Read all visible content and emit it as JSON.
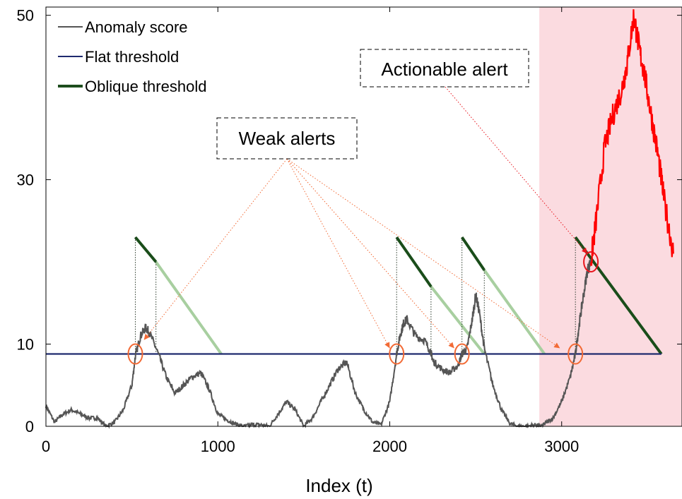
{
  "chart_data": {
    "type": "line",
    "xlabel": "Index (t)",
    "ylabel": "",
    "xlim": [
      0,
      3700
    ],
    "ylim": [
      0,
      51
    ],
    "x_ticks": [
      0,
      1000,
      2000,
      3000
    ],
    "y_ticks": [
      0,
      10,
      30,
      50
    ],
    "grid": false,
    "legend": {
      "position": "top-left",
      "entries": [
        {
          "label": "Anomaly score",
          "color": "#555555"
        },
        {
          "label": "Flat threshold",
          "color": "#1f2a6e"
        },
        {
          "label": "Oblique threshold",
          "color": "#1e4d1e"
        }
      ]
    },
    "colors": {
      "score": "#555555",
      "score_alert": "#ff0000",
      "flat": "#1f2a6e",
      "oblique_dark": "#1a4d1a",
      "oblique_light": "#a8cfa0",
      "shade": "#fbdbe0",
      "marker": "#f26a35",
      "marker_actionable": "#e8141c",
      "leader": "#f26a35"
    },
    "shaded_region": {
      "x_start": 2870,
      "x_end": 3700
    },
    "flat_threshold": 8.8,
    "anomaly_score": {
      "x": [
        0,
        50,
        100,
        150,
        200,
        250,
        300,
        350,
        400,
        450,
        500,
        520,
        550,
        580,
        600,
        650,
        700,
        750,
        800,
        850,
        900,
        950,
        1000,
        1050,
        1100,
        1150,
        1200,
        1250,
        1300,
        1350,
        1400,
        1450,
        1500,
        1550,
        1600,
        1650,
        1700,
        1750,
        1800,
        1850,
        1900,
        1950,
        2000,
        2040,
        2060,
        2080,
        2100,
        2150,
        2200,
        2240,
        2250,
        2300,
        2350,
        2400,
        2420,
        2450,
        2480,
        2500,
        2520,
        2550,
        2600,
        2650,
        2700,
        2750,
        2800,
        2850,
        2880,
        2900,
        2950,
        3000,
        3050,
        3080,
        3100,
        3120,
        3150,
        3170
      ],
      "y": [
        2.5,
        0.5,
        1.5,
        2,
        1.5,
        1,
        1,
        0,
        0.5,
        2,
        5,
        8.5,
        11,
        12,
        11.5,
        9,
        6,
        4,
        5,
        6,
        6.5,
        4.5,
        1.5,
        0.8,
        0.3,
        0,
        0.2,
        0.2,
        0,
        1.5,
        3,
        2,
        0,
        1,
        3,
        5,
        7,
        7.8,
        4,
        2,
        0.5,
        0.2,
        3,
        8.8,
        11,
        12.5,
        13,
        11,
        10.5,
        9,
        8,
        7,
        6.5,
        7.5,
        8.8,
        9.5,
        13,
        16,
        14,
        9.5,
        5,
        2,
        0.3,
        0,
        0,
        0.2,
        0,
        0.3,
        1,
        3,
        6,
        8.8,
        12,
        15,
        19,
        20
      ],
      "alert_x": [
        3170,
        3200,
        3250,
        3300,
        3350,
        3380,
        3420,
        3450,
        3480,
        3520,
        3560,
        3600,
        3650
      ],
      "alert_y": [
        20,
        25,
        34,
        38,
        41,
        44,
        50,
        46,
        43,
        38,
        33,
        27,
        21
      ]
    },
    "oblique_thresholds": [
      {
        "x_start": 520,
        "y_start": 23,
        "x_split": 640,
        "y_split": 20,
        "x_end": 1020,
        "y_end": 8.8
      },
      {
        "x_start": 2040,
        "y_start": 23,
        "x_split": 2240,
        "y_split": 17,
        "x_end": 2550,
        "y_end": 8.8
      },
      {
        "x_start": 2420,
        "y_start": 23,
        "x_split": 2550,
        "y_split": 19,
        "x_end": 2900,
        "y_end": 8.8
      },
      {
        "x_start": 3080,
        "y_start": 23,
        "x_split": 3080,
        "y_split": 23,
        "x_end": 3580,
        "y_end": 8.8,
        "full_dark": true
      }
    ],
    "alert_markers": [
      {
        "x": 520,
        "y": 8.8,
        "kind": "weak"
      },
      {
        "x": 2040,
        "y": 8.8,
        "kind": "weak"
      },
      {
        "x": 2420,
        "y": 8.8,
        "kind": "weak"
      },
      {
        "x": 3080,
        "y": 8.8,
        "kind": "weak"
      },
      {
        "x": 3170,
        "y": 20,
        "kind": "actionable"
      }
    ],
    "annotations": {
      "weak": {
        "text": "Weak alerts",
        "targets": [
          [
            570,
            10.5
          ],
          [
            2000,
            9.5
          ],
          [
            2375,
            9.5
          ],
          [
            2990,
            9.5
          ]
        ]
      },
      "actionable": {
        "text": "Actionable alert",
        "targets": [
          [
            3150,
            21
          ]
        ]
      }
    }
  }
}
